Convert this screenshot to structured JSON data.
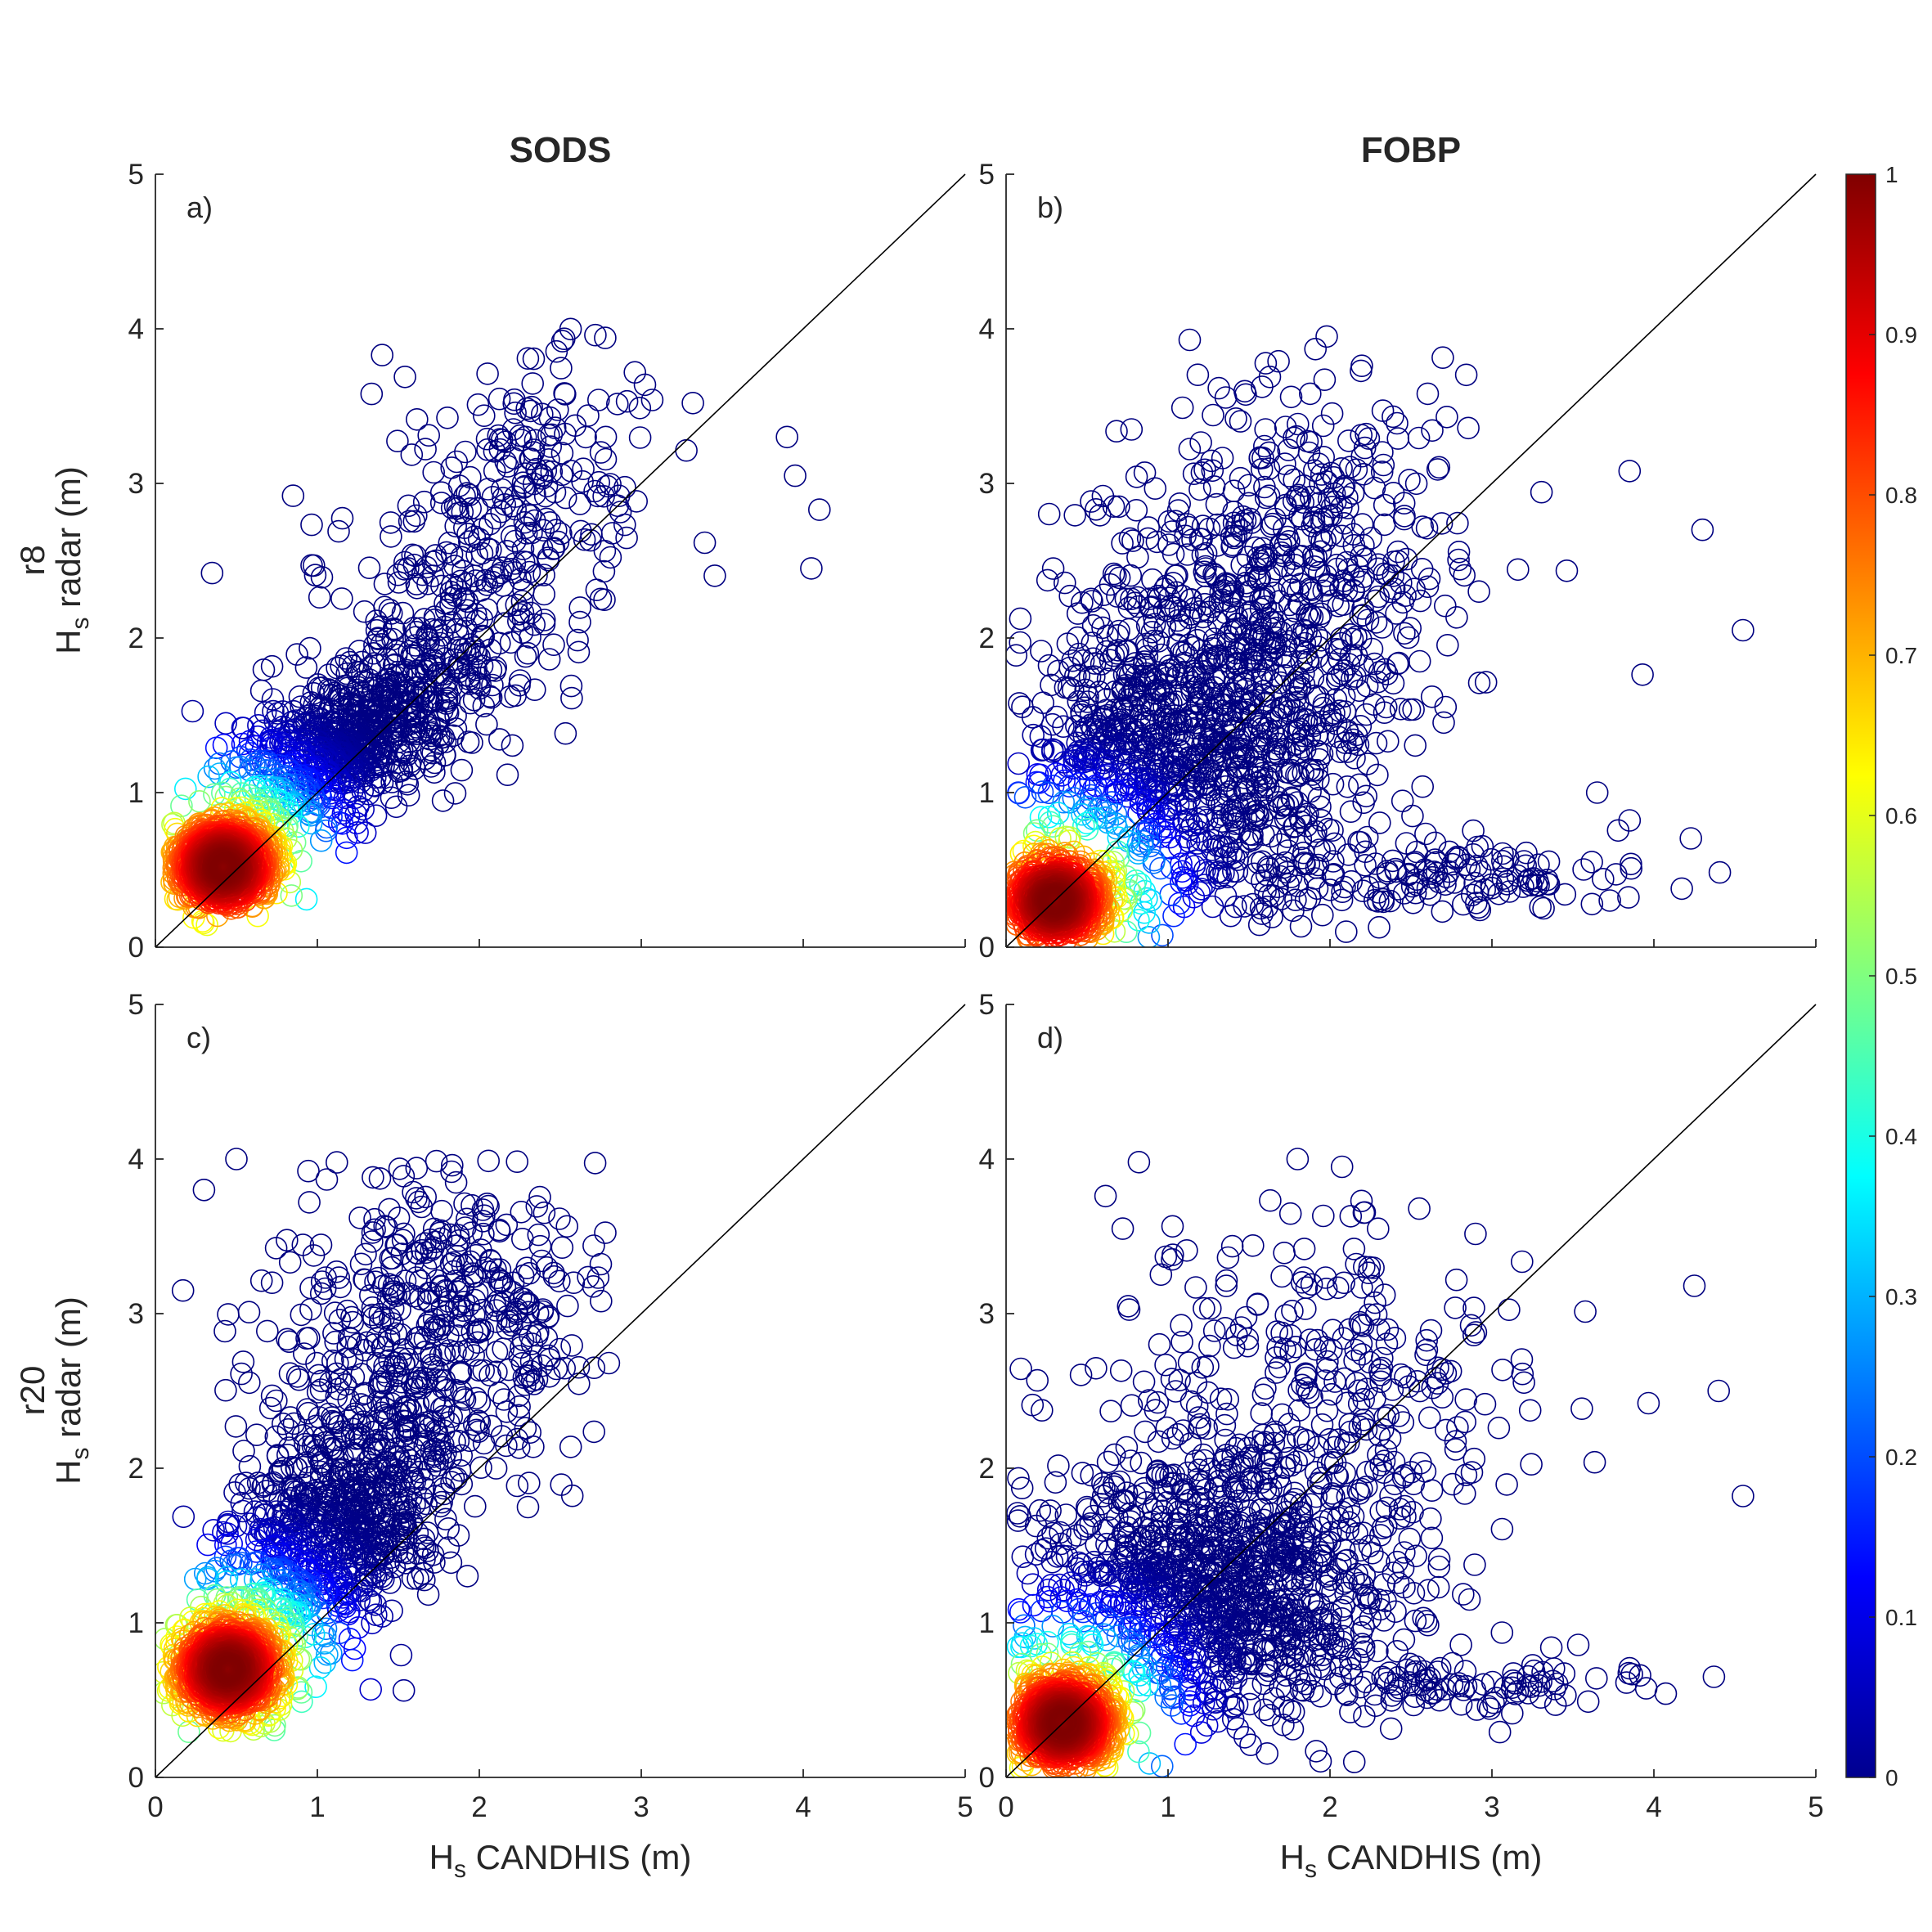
{
  "column_titles": [
    "SODS",
    "FOBP"
  ],
  "row_labels": [
    "r8",
    "r20"
  ],
  "y_axis_label": {
    "main": "H",
    "sub": "s",
    "rest": " radar (m)"
  },
  "x_axis_label": {
    "main": "H",
    "sub": "s",
    "rest": " CANDHIS (m)"
  },
  "chart_data": [
    {
      "type": "scatter",
      "panel": "a)",
      "column": "SODS",
      "row": "r8",
      "xlim": [
        0,
        5
      ],
      "ylim": [
        0,
        5
      ],
      "xticks": [
        0,
        1,
        2,
        3,
        4,
        5
      ],
      "yticks": [
        0,
        1,
        2,
        3,
        4,
        5
      ],
      "reference_line": "y = x",
      "marker": "open circle",
      "color_by": "relative point density",
      "density_peak": [
        0.42,
        0.52
      ],
      "x_range_observed": [
        0.1,
        4.15
      ],
      "y_range_observed": [
        0.1,
        4.0
      ],
      "outlier_points": [
        [
          4.05,
          2.45
        ],
        [
          4.1,
          2.83
        ],
        [
          3.95,
          3.05
        ],
        [
          3.9,
          3.3
        ],
        [
          1.4,
          3.83
        ],
        [
          0.85,
          2.92
        ],
        [
          0.35,
          2.42
        ]
      ]
    },
    {
      "type": "scatter",
      "panel": "b)",
      "column": "FOBP",
      "row": "r8",
      "xlim": [
        0,
        5
      ],
      "ylim": [
        0,
        5
      ],
      "xticks": [
        0,
        1,
        2,
        3,
        4,
        5
      ],
      "yticks": [
        0,
        1,
        2,
        3,
        4,
        5
      ],
      "reference_line": "y = x",
      "marker": "open circle",
      "color_by": "relative point density",
      "density_peak": [
        0.3,
        0.3
      ],
      "x_range_observed": [
        0.05,
        4.6
      ],
      "y_range_observed": [
        0.05,
        3.95
      ],
      "outlier_points": [
        [
          4.55,
          2.05
        ],
        [
          4.3,
          2.7
        ],
        [
          3.85,
          3.08
        ],
        [
          3.65,
          1.0
        ],
        [
          3.85,
          0.82
        ],
        [
          1.98,
          3.95
        ],
        [
          2.1,
          0.1
        ]
      ]
    },
    {
      "type": "scatter",
      "panel": "c)",
      "column": "SODS",
      "row": "r20",
      "xlim": [
        0,
        5
      ],
      "ylim": [
        0,
        5
      ],
      "xticks": [
        0,
        1,
        2,
        3,
        4,
        5
      ],
      "yticks": [
        0,
        1,
        2,
        3,
        4,
        5
      ],
      "reference_line": "y = x",
      "marker": "open circle",
      "color_by": "relative point density",
      "density_peak": [
        0.45,
        0.7
      ],
      "x_range_observed": [
        0.05,
        2.85
      ],
      "y_range_observed": [
        0.15,
        4.0
      ],
      "outlier_points": [
        [
          0.5,
          4.0
        ],
        [
          0.3,
          3.8
        ],
        [
          0.72,
          3.2
        ],
        [
          0.95,
          3.72
        ],
        [
          2.8,
          2.68
        ],
        [
          2.75,
          3.32
        ],
        [
          0.17,
          3.15
        ]
      ]
    },
    {
      "type": "scatter",
      "panel": "d)",
      "column": "FOBP",
      "row": "r20",
      "xlim": [
        0,
        5
      ],
      "ylim": [
        0,
        5
      ],
      "xticks": [
        0,
        1,
        2,
        3,
        4,
        5
      ],
      "yticks": [
        0,
        1,
        2,
        3,
        4,
        5
      ],
      "reference_line": "y = x",
      "marker": "open circle",
      "color_by": "relative point density",
      "density_peak": [
        0.35,
        0.35
      ],
      "x_range_observed": [
        0.05,
        4.6
      ],
      "y_range_observed": [
        0.05,
        4.0
      ],
      "outlier_points": [
        [
          4.55,
          1.82
        ],
        [
          4.4,
          2.5
        ],
        [
          4.25,
          3.18
        ],
        [
          0.82,
          3.98
        ],
        [
          0.72,
          3.55
        ],
        [
          1.8,
          4.0
        ],
        [
          2.15,
          0.1
        ]
      ]
    }
  ],
  "colorbar": {
    "colormap": "jet",
    "min": 0,
    "max": 1,
    "ticks": [
      0,
      0.1,
      0.2,
      0.3,
      0.4,
      0.5,
      0.6,
      0.7,
      0.8,
      0.9,
      1
    ],
    "tick_labels": [
      "0",
      "0.1",
      "0.2",
      "0.3",
      "0.4",
      "0.5",
      "0.6",
      "0.7",
      "0.8",
      "0.9",
      "1"
    ]
  },
  "colors": {
    "axis": "#262626",
    "reference_line": "#000000",
    "low_density": "#00008f",
    "high_density": "#800000"
  }
}
